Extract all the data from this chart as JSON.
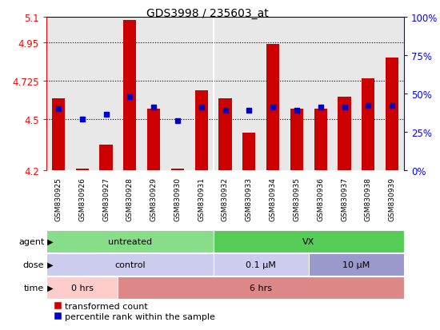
{
  "title": "GDS3998 / 235603_at",
  "samples": [
    "GSM830925",
    "GSM830926",
    "GSM830927",
    "GSM830928",
    "GSM830929",
    "GSM830930",
    "GSM830931",
    "GSM830932",
    "GSM830933",
    "GSM830934",
    "GSM830935",
    "GSM830936",
    "GSM830937",
    "GSM830938",
    "GSM830939"
  ],
  "red_values": [
    4.62,
    4.21,
    4.35,
    5.08,
    4.56,
    4.21,
    4.67,
    4.62,
    4.42,
    4.94,
    4.56,
    4.56,
    4.63,
    4.74,
    4.86
  ],
  "blue_values": [
    4.56,
    4.5,
    4.53,
    4.63,
    4.57,
    4.49,
    4.57,
    4.55,
    4.55,
    4.57,
    4.55,
    4.57,
    4.57,
    4.58,
    4.58
  ],
  "ymin": 4.2,
  "ymax": 5.1,
  "yticks_left": [
    4.2,
    4.5,
    4.725,
    4.95,
    5.1
  ],
  "yticks_right_vals": [
    0,
    25,
    50,
    75,
    100
  ],
  "hlines": [
    4.5,
    4.725,
    4.95
  ],
  "bar_color": "#cc0000",
  "dot_color": "#0000cc",
  "agent_color_untreated": "#88dd88",
  "agent_color_vx": "#55cc55",
  "dose_color_control": "#ccccee",
  "dose_color_01": "#ccccee",
  "dose_color_10": "#9999cc",
  "time_color_0": "#ffcccc",
  "time_color_6": "#dd8888",
  "plot_bg": "#e8e8e8",
  "legend_red": "transformed count",
  "legend_blue": "percentile rank within the sample"
}
